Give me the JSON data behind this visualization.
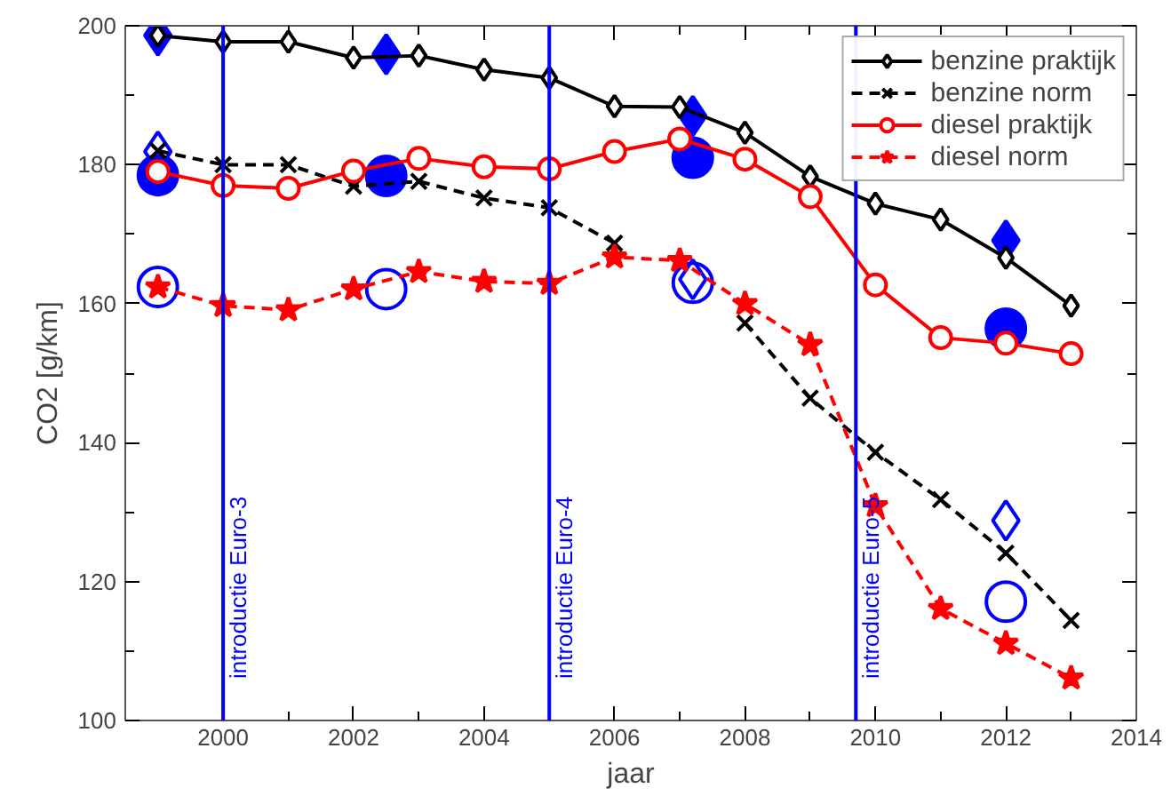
{
  "chart_data": {
    "type": "line",
    "xlabel": "jaar",
    "ylabel": "CO2 [g/km]",
    "xlim": [
      1998.5,
      2014
    ],
    "ylim": [
      100,
      200
    ],
    "xticks": [
      2000,
      2002,
      2004,
      2006,
      2008,
      2010,
      2012,
      2014
    ],
    "yticks": [
      100,
      120,
      140,
      160,
      180,
      200
    ],
    "grid": false,
    "legend": "top right",
    "x": [
      1999,
      2000,
      2001,
      2002,
      2003,
      2004,
      2005,
      2006,
      2007,
      2008,
      2009,
      2010,
      2011,
      2012,
      2013
    ],
    "series": [
      {
        "name": "benzine praktijk",
        "color": "#000000",
        "marker": "diamond",
        "line_style": "solid",
        "values": [
          198.6,
          197.7,
          197.7,
          195.4,
          195.7,
          193.7,
          192.5,
          188.4,
          188.3,
          184.6,
          178.3,
          174.4,
          172.1,
          166.6,
          159.7
        ]
      },
      {
        "name": "benzine norm",
        "color": "#000000",
        "marker": "cross",
        "line_style": "dashed",
        "values": [
          182,
          180,
          180,
          176.9,
          177.6,
          175.2,
          173.8,
          168.7,
          null,
          157.2,
          146.4,
          138.6,
          131.8,
          124.1,
          114.4
        ]
      },
      {
        "name": "diesel praktijk",
        "color": "#ff0000",
        "marker": "circle",
        "line_style": "solid",
        "values": [
          179,
          177,
          176.6,
          179.1,
          180.9,
          179.7,
          179.4,
          181.9,
          183.7,
          180.8,
          175.4,
          162.7,
          155.1,
          154.3,
          152.8
        ]
      },
      {
        "name": "diesel norm",
        "color": "#ff0000",
        "marker": "star",
        "line_style": "dashed",
        "values": [
          162.4,
          159.7,
          159.1,
          162.1,
          164.6,
          163.2,
          162.9,
          166.7,
          166.2,
          160,
          154.1,
          130.9,
          116.1,
          111.1,
          106.1
        ]
      },
      {
        "type": "scatter",
        "color": "#0000ff",
        "marker": "diamond",
        "x": [
          1999,
          2002.5,
          2007.2,
          2012
        ],
        "values": [
          198.6,
          195.9,
          187,
          169.1
        ]
      },
      {
        "type": "scatter",
        "color": "#0000ff",
        "marker": "circle",
        "x": [
          1999,
          2002.5,
          2007.2,
          2012
        ],
        "values": [
          178.5,
          178.4,
          181,
          156.4
        ]
      },
      {
        "type": "scatter",
        "color": "#0000ff",
        "marker": "diamond",
        "x": [
          1999,
          2007.2,
          2012
        ],
        "values": [
          181.9,
          163.5,
          128.8
        ]
      },
      {
        "type": "scatter",
        "color": "#0000ff",
        "marker": "circle",
        "x": [
          1999,
          2002.5,
          2007.2,
          2012
        ],
        "values": [
          162.4,
          162.1,
          163,
          117.1
        ]
      }
    ],
    "ref_lines": [
      {
        "axis": "x",
        "value": 2000,
        "label": "introductie Euro-3",
        "color": "#0000ff"
      },
      {
        "axis": "x",
        "value": 2005,
        "label": "introductie Euro-4",
        "color": "#0000ff"
      },
      {
        "axis": "x",
        "value": 2009.7,
        "label": "introductie Euro-5",
        "color": "#0000ff"
      }
    ]
  }
}
